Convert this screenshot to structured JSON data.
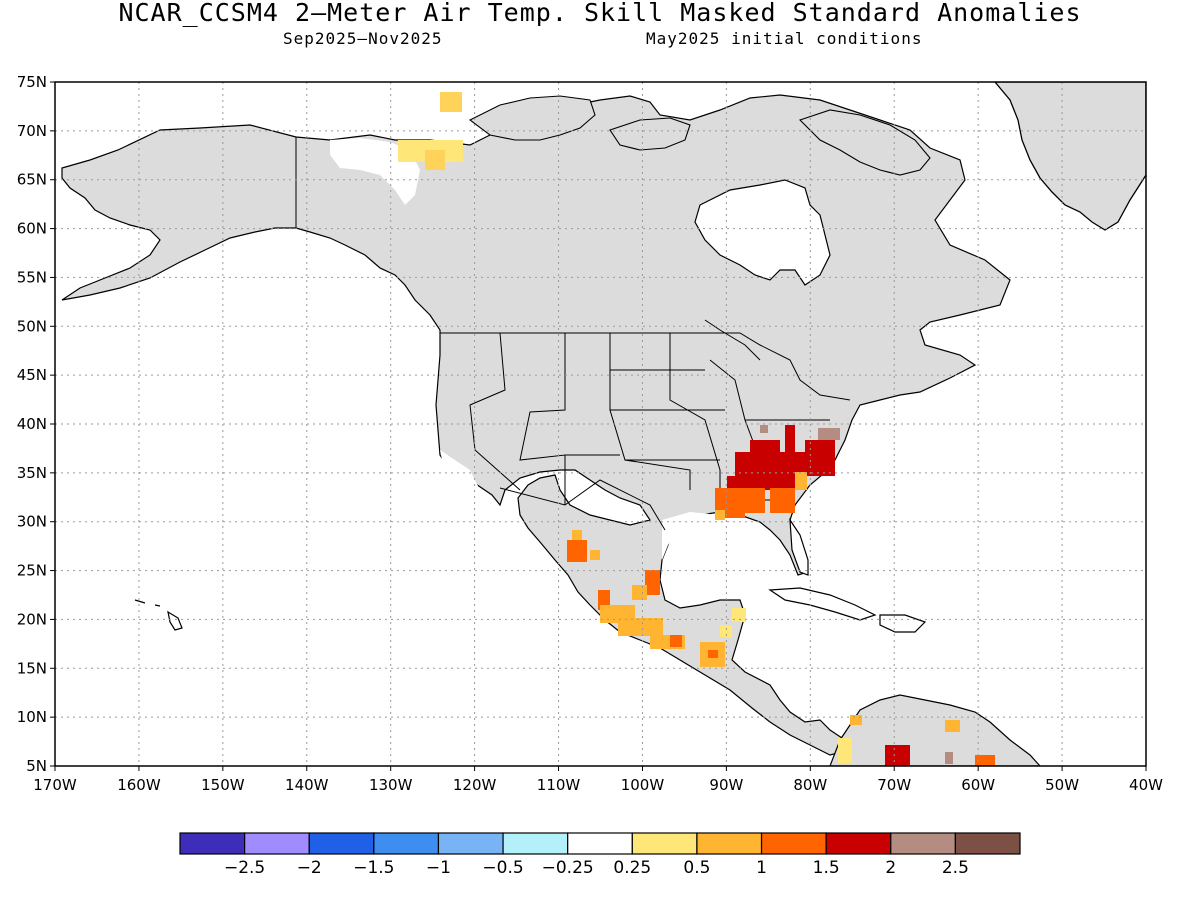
{
  "title": "NCAR_CCSM4 2–Meter Air Temp. Skill Masked Standard Anomalies",
  "subtitle_period": "Sep2025–Nov2025",
  "subtitle_ic": "May2025 initial conditions",
  "axes": {
    "lat_labels": [
      "75N",
      "70N",
      "65N",
      "60N",
      "55N",
      "50N",
      "45N",
      "40N",
      "35N",
      "30N",
      "25N",
      "20N",
      "15N",
      "10N",
      "5N"
    ],
    "lon_labels": [
      "170W",
      "160W",
      "150W",
      "140W",
      "130W",
      "120W",
      "110W",
      "100W",
      "90W",
      "80W",
      "70W",
      "60W",
      "50W",
      "40W"
    ],
    "lat_range": [
      5,
      75
    ],
    "lon_range": [
      -170,
      -40
    ],
    "grid": "dotted"
  },
  "colorbar": {
    "labels": [
      "−2.5",
      "−2",
      "−1.5",
      "−1",
      "−0.5",
      "−0.25",
      "0.25",
      "0.5",
      "1",
      "1.5",
      "2",
      "2.5"
    ],
    "colors": [
      "#3d2db8",
      "#a08cff",
      "#2060e6",
      "#3d8ef0",
      "#78b4f5",
      "#b4f0fa",
      "#ffffff",
      "#ffe678",
      "#ffb432",
      "#ff6400",
      "#c80000",
      "#b48c82",
      "#7d5046"
    ]
  },
  "colors": {
    "masked_land": "#dcdcdc",
    "coastline": "#000000"
  }
}
